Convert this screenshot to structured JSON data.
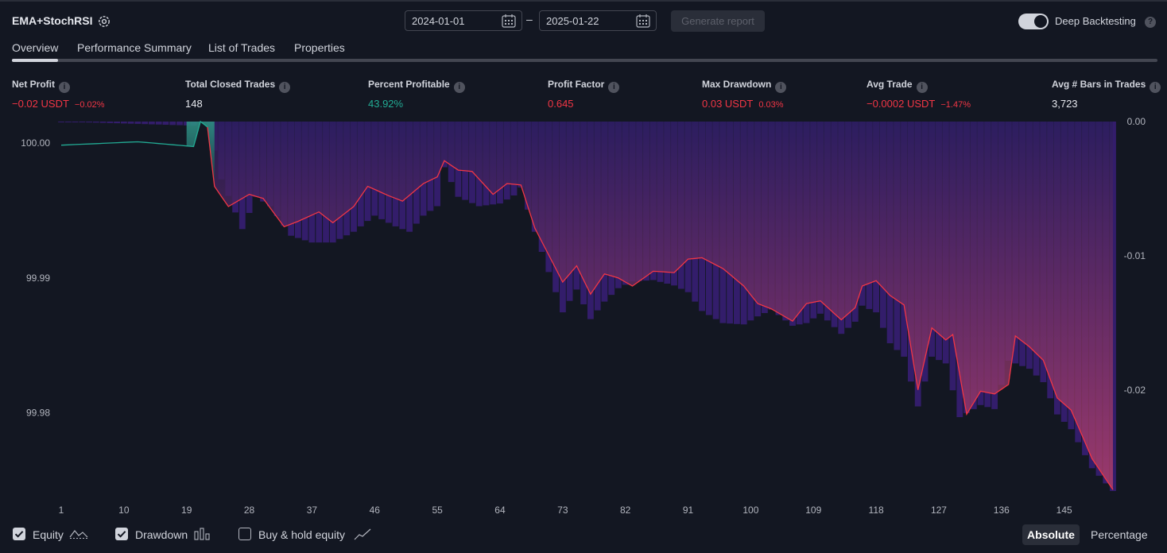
{
  "header": {
    "strategy_name": "EMA+StochRSI",
    "date_from": "2024-01-01",
    "date_separator": "–",
    "date_to": "2025-01-22",
    "generate_label": "Generate report",
    "deep_backtesting_label": "Deep Backtesting",
    "deep_backtesting_on": true
  },
  "tabs": [
    {
      "label": "Overview",
      "active": true
    },
    {
      "label": "Performance Summary",
      "active": false
    },
    {
      "label": "List of Trades",
      "active": false
    },
    {
      "label": "Properties",
      "active": false
    }
  ],
  "metrics": {
    "net_profit": {
      "label": "Net Profit",
      "value": "−0.02 USDT",
      "sub": "−0.02%"
    },
    "total_closed_trades": {
      "label": "Total Closed Trades",
      "value": "148"
    },
    "percent_profitable": {
      "label": "Percent Profitable",
      "value": "43.92%"
    },
    "profit_factor": {
      "label": "Profit Factor",
      "value": "0.645"
    },
    "max_drawdown": {
      "label": "Max Drawdown",
      "value": "0.03 USDT",
      "sub": "0.03%"
    },
    "avg_trade": {
      "label": "Avg Trade",
      "value": "−0.0002 USDT",
      "sub": "−1.47%"
    },
    "avg_bars": {
      "label": "Avg # Bars in Trades",
      "value": "3,723"
    }
  },
  "colors": {
    "background": "#131722",
    "positive": "#22ab94",
    "negative": "#f23645",
    "drawdown_bar": "#3d1f7a",
    "equity_fill": "#b03a6a"
  },
  "chart_data": {
    "type": "line",
    "x_ticks": [
      "1",
      "10",
      "19",
      "28",
      "37",
      "46",
      "55",
      "64",
      "73",
      "82",
      "91",
      "100",
      "109",
      "118",
      "127",
      "136",
      "145"
    ],
    "left_axis": {
      "label": "Equity",
      "ticks": [
        "100.00",
        "99.99",
        "99.98"
      ],
      "tick_values": [
        100.0,
        99.99,
        99.98
      ],
      "range": [
        99.9742,
        100.0016
      ]
    },
    "right_axis": {
      "label": "Drawdown",
      "ticks": [
        "0.00",
        "-0.01",
        "-0.02"
      ],
      "tick_values": [
        0.0,
        -0.01,
        -0.02
      ],
      "range": [
        -0.0275,
        0.0
      ]
    },
    "equity_knots": [
      [
        1,
        99.99985
      ],
      [
        12,
        100.0001
      ],
      [
        20,
        99.99975
      ],
      [
        21,
        100.0016
      ],
      [
        22,
        100.0012
      ],
      [
        23,
        99.9968
      ],
      [
        25,
        99.9953
      ],
      [
        28,
        99.9962
      ],
      [
        30,
        99.9959
      ],
      [
        33,
        99.9938
      ],
      [
        35,
        99.9942
      ],
      [
        38,
        99.9949
      ],
      [
        40,
        99.9941
      ],
      [
        43,
        99.9953
      ],
      [
        45,
        99.9968
      ],
      [
        48,
        99.9961
      ],
      [
        50,
        99.9957
      ],
      [
        53,
        99.997
      ],
      [
        55,
        99.9975
      ],
      [
        56,
        99.9987
      ],
      [
        58,
        99.998
      ],
      [
        60,
        99.9979
      ],
      [
        63,
        99.9962
      ],
      [
        65,
        99.997
      ],
      [
        67,
        99.9969
      ],
      [
        69,
        99.9937
      ],
      [
        73,
        99.9897
      ],
      [
        75,
        99.9909
      ],
      [
        77,
        99.9888
      ],
      [
        79,
        99.9903
      ],
      [
        81,
        99.99
      ],
      [
        83,
        99.9894
      ],
      [
        86,
        99.9905
      ],
      [
        89,
        99.9904
      ],
      [
        91,
        99.9914
      ],
      [
        93,
        99.9915
      ],
      [
        96,
        99.9907
      ],
      [
        99,
        99.9894
      ],
      [
        101,
        99.9881
      ],
      [
        103,
        99.9877
      ],
      [
        106,
        99.9868
      ],
      [
        108,
        99.9881
      ],
      [
        110,
        99.9883
      ],
      [
        113,
        99.9869
      ],
      [
        115,
        99.9878
      ],
      [
        116,
        99.9894
      ],
      [
        118,
        99.9898
      ],
      [
        120,
        99.9887
      ],
      [
        122,
        99.988
      ],
      [
        124,
        99.9817
      ],
      [
        126,
        99.9863
      ],
      [
        128,
        99.9854
      ],
      [
        129,
        99.9858
      ],
      [
        131,
        99.9799
      ],
      [
        133,
        99.9816
      ],
      [
        135,
        99.9814
      ],
      [
        137,
        99.9821
      ],
      [
        138,
        99.9857
      ],
      [
        140,
        99.9849
      ],
      [
        142,
        99.9839
      ],
      [
        144,
        99.9811
      ],
      [
        146,
        99.9802
      ],
      [
        149,
        99.9766
      ],
      [
        152,
        99.9743
      ]
    ],
    "drawdown_knots": [
      [
        1,
        0.0
      ],
      [
        20,
        -0.0003
      ],
      [
        21,
        0.0
      ],
      [
        22,
        0.0
      ],
      [
        24,
        -0.0043
      ],
      [
        27,
        -0.008
      ],
      [
        29,
        -0.0056
      ],
      [
        31,
        -0.0063
      ],
      [
        34,
        -0.0085
      ],
      [
        37,
        -0.009
      ],
      [
        40,
        -0.009
      ],
      [
        43,
        -0.0082
      ],
      [
        46,
        -0.007
      ],
      [
        49,
        -0.0078
      ],
      [
        51,
        -0.0082
      ],
      [
        53,
        -0.007
      ],
      [
        55,
        -0.0063
      ],
      [
        56,
        -0.0034
      ],
      [
        58,
        -0.0056
      ],
      [
        61,
        -0.0063
      ],
      [
        64,
        -0.0061
      ],
      [
        66,
        -0.0055
      ],
      [
        67,
        -0.0049
      ],
      [
        69,
        -0.0082
      ],
      [
        73,
        -0.0142
      ],
      [
        75,
        -0.0125
      ],
      [
        77,
        -0.0147
      ],
      [
        79,
        -0.0134
      ],
      [
        81,
        -0.0124
      ],
      [
        83,
        -0.0119
      ],
      [
        86,
        -0.0118
      ],
      [
        89,
        -0.0122
      ],
      [
        91,
        -0.0127
      ],
      [
        93,
        -0.0141
      ],
      [
        96,
        -0.015
      ],
      [
        99,
        -0.0151
      ],
      [
        101,
        -0.0145
      ],
      [
        103,
        -0.014
      ],
      [
        106,
        -0.0152
      ],
      [
        108,
        -0.015
      ],
      [
        110,
        -0.0143
      ],
      [
        113,
        -0.0158
      ],
      [
        115,
        -0.0149
      ],
      [
        116,
        -0.0137
      ],
      [
        118,
        -0.0142
      ],
      [
        120,
        -0.0165
      ],
      [
        122,
        -0.0175
      ],
      [
        124,
        -0.0212
      ],
      [
        126,
        -0.0175
      ],
      [
        128,
        -0.018
      ],
      [
        130,
        -0.022
      ],
      [
        133,
        -0.0211
      ],
      [
        135,
        -0.0214
      ],
      [
        137,
        -0.0178
      ],
      [
        138,
        -0.018
      ],
      [
        140,
        -0.0184
      ],
      [
        142,
        -0.0194
      ],
      [
        144,
        -0.0218
      ],
      [
        146,
        -0.0229
      ],
      [
        149,
        -0.0258
      ],
      [
        152,
        -0.0275
      ]
    ],
    "series": [
      {
        "name": "Equity",
        "visible": true
      },
      {
        "name": "Drawdown",
        "visible": true
      },
      {
        "name": "Buy & hold equity",
        "visible": false
      }
    ]
  },
  "footer": {
    "equity_label": "Equity",
    "drawdown_label": "Drawdown",
    "buyhold_label": "Buy & hold equity",
    "absolute_label": "Absolute",
    "percentage_label": "Percentage"
  }
}
